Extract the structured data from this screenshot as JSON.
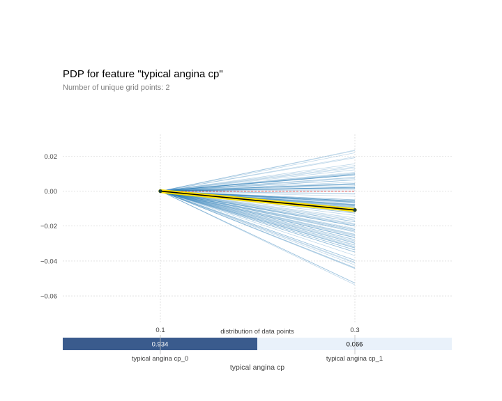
{
  "chart_data": {
    "type": "line",
    "title": "PDP for feature \"typical angina cp\"",
    "subtitle": "Number of unique grid points: 2",
    "x_ticks": [
      "0.1",
      "0.3"
    ],
    "x": [
      0.1,
      0.3
    ],
    "y_ticks": [
      0.02,
      0.0,
      -0.02,
      -0.04,
      -0.06
    ],
    "y_tick_labels": [
      "0.02",
      "0.00",
      "−0.02",
      "−0.04",
      "−0.06"
    ],
    "ylim": [
      -0.0755,
      0.0325
    ],
    "grid": true,
    "pdp_series": {
      "x": [
        0.1,
        0.3
      ],
      "y": [
        0.0,
        -0.0108
      ]
    },
    "baseline": 0.0,
    "ice_endpoint_range": [
      -0.06,
      0.0325
    ],
    "ice_line_count": 130,
    "distribution": {
      "title": "distribution of data points",
      "xlabel": "typical angina cp",
      "bins": [
        {
          "label": "typical angina cp_0",
          "fraction_label": "0.934",
          "fraction": 0.934
        },
        {
          "label": "typical angina cp_1",
          "fraction_label": "0.066",
          "fraction": 0.066
        }
      ]
    },
    "colors": {
      "ice": "#1f77b4",
      "pdp": "#000000",
      "pdp_highlight": "#ffe100",
      "baseline": "#d62728",
      "marker": "#1b3e3a",
      "dist_high": "#3a5b8d",
      "dist_low": "#e9f1fa",
      "grid": "#cfcfcf"
    }
  }
}
